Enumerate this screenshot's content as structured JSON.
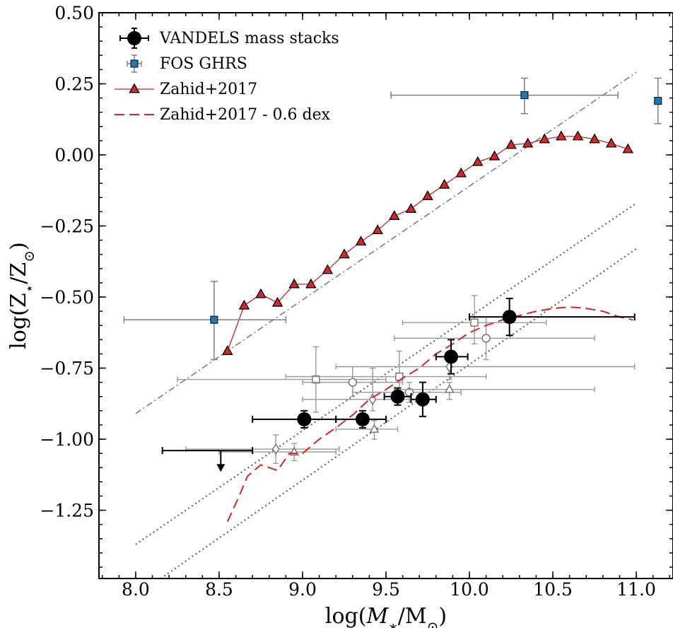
{
  "chart_data": {
    "type": "scatter",
    "xlabel": "log(M∗/M⊙)",
    "ylabel": "log(Z⋆/Z⊙)",
    "xlim": [
      7.78,
      11.22
    ],
    "ylim": [
      -1.49,
      0.5
    ],
    "x_ticks": [
      8.0,
      8.5,
      9.0,
      9.5,
      10.0,
      10.5,
      11.0
    ],
    "y_ticks": [
      0.5,
      0.25,
      0.0,
      -0.25,
      -0.5,
      -0.75,
      -1.0,
      -1.25
    ],
    "x_tick_labels": [
      "8.0",
      "8.5",
      "9.0",
      "9.5",
      "10.0",
      "10.5",
      "11.0"
    ],
    "y_tick_labels": [
      "0.50",
      "0.25",
      "0.00",
      "−0.25",
      "−0.50",
      "−0.75",
      "−1.00",
      "−1.25"
    ],
    "grid": false,
    "legend_position": "top-left",
    "legend": [
      "VANDELS mass stacks",
      "FOS GHRS",
      "Zahid+2017",
      "Zahid+2017 - 0.6 dex"
    ],
    "colors": {
      "vandels": "#000000",
      "fos": "#1f77b4",
      "fos_err": "#7f7f7f",
      "zahid_marker": "#d62728",
      "zahid_line": "#c0282a",
      "dashed": "#d62728",
      "dashdot": "#6b7b8f",
      "dotted": "#666666",
      "literature": "#999999"
    },
    "series": {
      "vandels": [
        {
          "x": 9.01,
          "y": -0.93,
          "xlo": 8.7,
          "xhi": 9.2,
          "yerr": 0.03
        },
        {
          "x": 9.36,
          "y": -0.93,
          "xlo": 9.2,
          "xhi": 9.5,
          "yerr": 0.03
        },
        {
          "x": 9.57,
          "y": -0.85,
          "xlo": 9.49,
          "xhi": 9.65,
          "yerr": 0.03
        },
        {
          "x": 9.72,
          "y": -0.86,
          "xlo": 9.65,
          "xhi": 9.8,
          "yerr": 0.06
        },
        {
          "x": 9.89,
          "y": -0.71,
          "xlo": 9.8,
          "xhi": 9.99,
          "yerr": 0.06
        },
        {
          "x": 10.24,
          "y": -0.57,
          "xlo": 10.0,
          "xhi": 10.99,
          "yerr": 0.065
        }
      ],
      "vandels_upper_limit": {
        "x": 8.51,
        "y": -1.04,
        "xlo": 8.16,
        "xhi": 8.7,
        "arrow_to": -1.11
      },
      "fos_ghrs": [
        {
          "x": 8.47,
          "y": -0.58,
          "xlo": 7.93,
          "xhi": 8.9,
          "ylo": -0.72,
          "yhi": -0.445
        },
        {
          "x": 10.33,
          "y": 0.21,
          "xlo": 9.53,
          "xhi": 10.89,
          "ylo": 0.145,
          "yhi": 0.27
        },
        {
          "x": 11.13,
          "y": 0.19,
          "xlo": 11.13,
          "xhi": 11.13,
          "ylo": 0.11,
          "yhi": 0.27
        }
      ],
      "zahid2017": {
        "x": [
          8.55,
          8.65,
          8.75,
          8.85,
          8.95,
          9.05,
          9.15,
          9.25,
          9.35,
          9.45,
          9.55,
          9.65,
          9.75,
          9.85,
          9.95,
          10.05,
          10.15,
          10.25,
          10.35,
          10.45,
          10.55,
          10.65,
          10.75,
          10.85,
          10.95
        ],
        "y": [
          -0.69,
          -0.53,
          -0.49,
          -0.52,
          -0.455,
          -0.455,
          -0.405,
          -0.35,
          -0.305,
          -0.265,
          -0.215,
          -0.19,
          -0.145,
          -0.105,
          -0.065,
          -0.025,
          -0.005,
          0.035,
          0.04,
          0.055,
          0.065,
          0.065,
          0.055,
          0.04,
          0.02
        ]
      },
      "zahid2017_minus_0_6": {
        "x": [
          8.55,
          8.62,
          8.67,
          8.75,
          8.85,
          8.92,
          9.0,
          9.1,
          9.2,
          9.3,
          9.4,
          9.5,
          9.6,
          9.7,
          9.8,
          9.9,
          10.0,
          10.1,
          10.2,
          10.3,
          10.4,
          10.5,
          10.6,
          10.7,
          10.8,
          10.9,
          10.98
        ],
        "y": [
          -1.29,
          -1.2,
          -1.13,
          -1.09,
          -1.11,
          -1.05,
          -1.05,
          -1.0,
          -0.96,
          -0.915,
          -0.86,
          -0.825,
          -0.785,
          -0.75,
          -0.7,
          -0.665,
          -0.625,
          -0.6,
          -0.58,
          -0.565,
          -0.55,
          -0.54,
          -0.535,
          -0.54,
          -0.55,
          -0.57,
          -0.58
        ]
      },
      "dashdot_line": {
        "x": [
          8.0,
          11.0
        ],
        "y": [
          -0.91,
          0.29
        ]
      },
      "dotted_lines": [
        {
          "x": [
            8.0,
            11.0
          ],
          "y": [
            -1.37,
            -0.17
          ]
        },
        {
          "x": [
            8.15,
            11.0
          ],
          "y": [
            -1.49,
            -0.33
          ]
        }
      ],
      "literature": [
        {
          "marker": "square",
          "x": 9.08,
          "y": -0.79,
          "xlo": 8.25,
          "xhi": 9.5,
          "ylo": -0.905,
          "yhi": -0.675
        },
        {
          "marker": "square",
          "x": 9.58,
          "y": -0.78,
          "xlo": 8.9,
          "xhi": 10.1,
          "ylo": -0.85,
          "yhi": -0.69
        },
        {
          "marker": "square",
          "x": 10.03,
          "y": -0.59,
          "xlo": 9.6,
          "xhi": 10.46,
          "ylo": -0.665,
          "yhi": -0.495
        },
        {
          "marker": "circle",
          "x": 9.3,
          "y": -0.8,
          "xlo": 9.0,
          "xhi": 9.6,
          "ylo": -0.85,
          "yhi": -0.745
        },
        {
          "marker": "circle",
          "x": 9.64,
          "y": -0.835,
          "xlo": 9.3,
          "xhi": 9.95,
          "ylo": -0.87,
          "yhi": -0.8
        },
        {
          "marker": "circle",
          "x": 10.1,
          "y": -0.645,
          "xlo": 9.55,
          "xhi": 10.75,
          "ylo": -0.72,
          "yhi": -0.57
        },
        {
          "marker": "diamond",
          "x": 8.84,
          "y": -1.035,
          "xlo": 8.3,
          "xhi": 9.22,
          "ylo": -1.085,
          "yhi": -0.985
        },
        {
          "marker": "diamond",
          "x": 9.42,
          "y": -0.86,
          "xlo": 9.0,
          "xhi": 9.7,
          "ylo": -0.9,
          "yhi": -0.75
        },
        {
          "marker": "diamond",
          "x": 9.88,
          "y": -0.745,
          "xlo": 9.2,
          "xhi": 10.99,
          "ylo": -0.79,
          "yhi": -0.7
        },
        {
          "marker": "triangle",
          "x": 8.95,
          "y": -1.045,
          "xlo": 8.5,
          "xhi": 9.2,
          "ylo": -1.075,
          "yhi": -1.015
        },
        {
          "marker": "triangle",
          "x": 9.43,
          "y": -0.965,
          "xlo": 9.2,
          "xhi": 9.57,
          "ylo": -1.0,
          "yhi": -0.935
        },
        {
          "marker": "triangle",
          "x": 9.88,
          "y": -0.825,
          "xlo": 9.55,
          "xhi": 10.75,
          "ylo": -0.86,
          "yhi": -0.8
        }
      ]
    }
  }
}
